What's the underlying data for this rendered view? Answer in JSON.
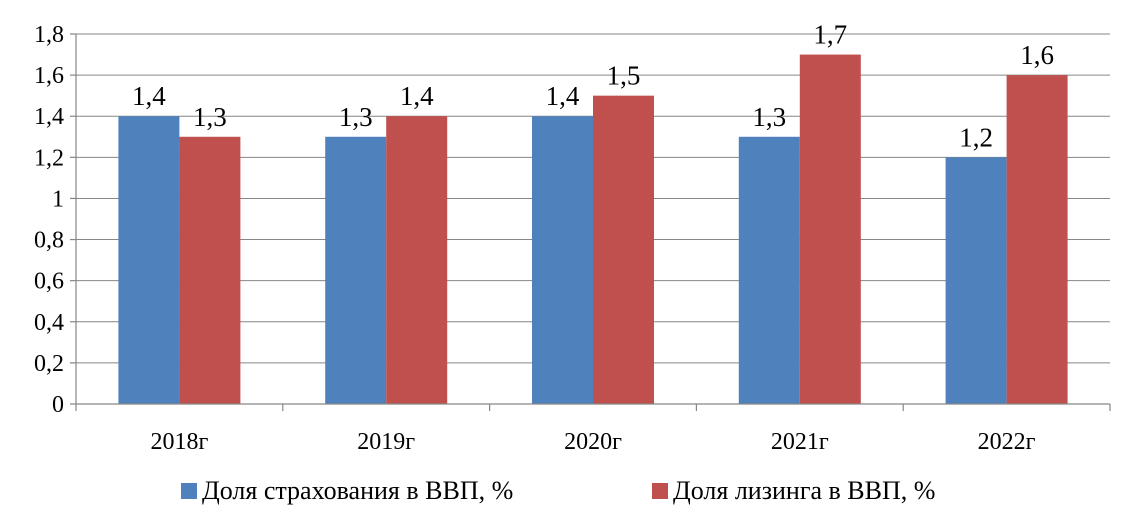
{
  "chart_data": {
    "type": "bar",
    "title": "",
    "xlabel": "",
    "ylabel": "",
    "categories": [
      "2018г",
      "2019г",
      "2020г",
      "2021г",
      "2022г"
    ],
    "series": [
      {
        "name": "Доля страхования в ВВП, %",
        "color": "#4F81BD",
        "values": [
          1.4,
          1.3,
          1.4,
          1.3,
          1.2
        ],
        "labels": [
          "1,4",
          "1,3",
          "1,4",
          "1,3",
          "1,2"
        ]
      },
      {
        "name": "Доля лизинга в ВВП, %",
        "color": "#C0504D",
        "values": [
          1.3,
          1.4,
          1.5,
          1.7,
          1.6
        ],
        "labels": [
          "1,3",
          "1,4",
          "1,5",
          "1,7",
          "1,6"
        ]
      }
    ],
    "ylim": [
      0,
      1.8
    ],
    "yticks": [
      0,
      0.2,
      0.4,
      0.6,
      0.8,
      1,
      1.2,
      1.4,
      1.6,
      1.8
    ],
    "ytick_labels": [
      "0",
      "0,2",
      "0,4",
      "0,6",
      "0,8",
      "1",
      "1,2",
      "1,4",
      "1,6",
      "1,8"
    ],
    "grid": true,
    "legend_position": "bottom"
  }
}
